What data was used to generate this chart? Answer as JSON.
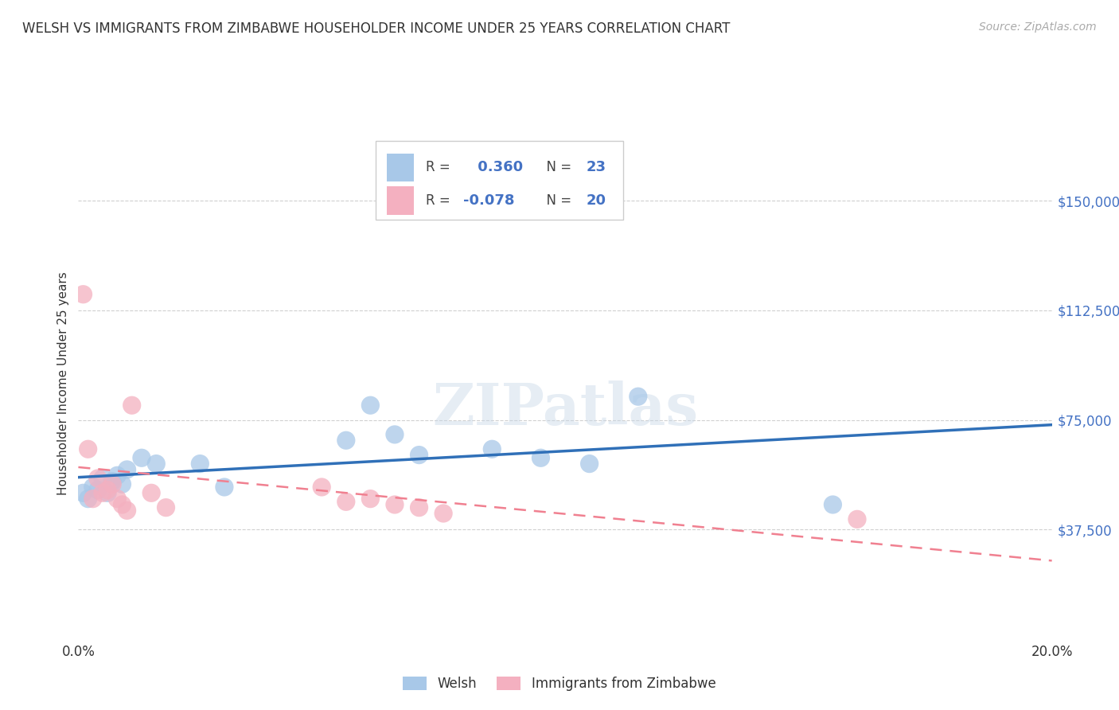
{
  "title": "WELSH VS IMMIGRANTS FROM ZIMBABWE HOUSEHOLDER INCOME UNDER 25 YEARS CORRELATION CHART",
  "source": "Source: ZipAtlas.com",
  "ylabel": "Householder Income Under 25 years",
  "xlim": [
    0.0,
    0.2
  ],
  "ylim": [
    0,
    175000
  ],
  "yticks": [
    37500,
    75000,
    112500,
    150000
  ],
  "ytick_labels": [
    "$37,500",
    "$75,000",
    "$112,500",
    "$150,000"
  ],
  "xticks": [
    0.0,
    0.04,
    0.08,
    0.12,
    0.16,
    0.2
  ],
  "xtick_labels": [
    "0.0%",
    "",
    "",
    "",
    "",
    "20.0%"
  ],
  "welsh_R": 0.36,
  "welsh_N": 23,
  "zimbabwe_R": -0.078,
  "zimbabwe_N": 20,
  "welsh_color": "#a8c8e8",
  "zimbabwe_color": "#f4b0c0",
  "welsh_line_color": "#3070b8",
  "zimbabwe_line_color": "#f08090",
  "legend_welsh_label": "Welsh",
  "legend_zimbabwe_label": "Immigrants from Zimbabwe",
  "watermark": "ZIPatlas",
  "welsh_x": [
    0.001,
    0.002,
    0.003,
    0.004,
    0.005,
    0.006,
    0.007,
    0.008,
    0.009,
    0.01,
    0.013,
    0.016,
    0.025,
    0.03,
    0.055,
    0.06,
    0.065,
    0.07,
    0.085,
    0.095,
    0.105,
    0.115,
    0.155
  ],
  "welsh_y": [
    50000,
    48000,
    52000,
    51000,
    55000,
    50000,
    54000,
    56000,
    53000,
    58000,
    62000,
    60000,
    60000,
    52000,
    68000,
    80000,
    70000,
    63000,
    65000,
    62000,
    60000,
    83000,
    46000
  ],
  "zimbabwe_x": [
    0.001,
    0.002,
    0.003,
    0.004,
    0.005,
    0.006,
    0.007,
    0.008,
    0.009,
    0.01,
    0.011,
    0.015,
    0.018,
    0.05,
    0.055,
    0.06,
    0.065,
    0.07,
    0.075,
    0.16
  ],
  "zimbabwe_y": [
    118000,
    65000,
    48000,
    55000,
    50000,
    51000,
    53000,
    48000,
    46000,
    44000,
    80000,
    50000,
    45000,
    52000,
    47000,
    48000,
    46000,
    45000,
    43000,
    41000
  ],
  "background_color": "#ffffff",
  "grid_color": "#d0d0d0",
  "value_color": "#4472c4",
  "label_color": "#333333"
}
